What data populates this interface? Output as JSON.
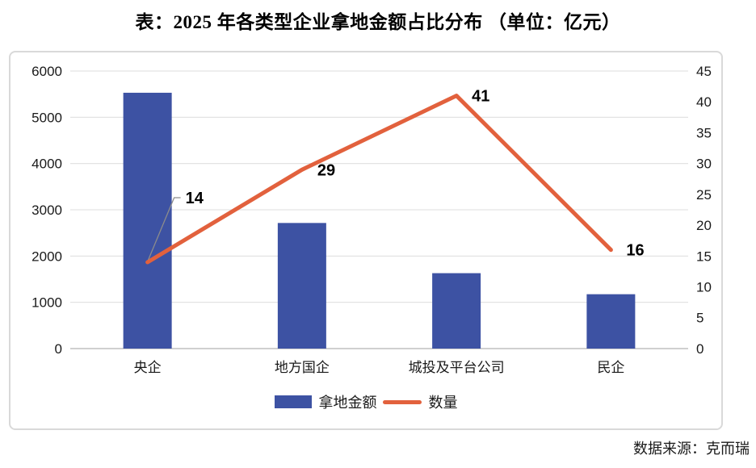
{
  "page": {
    "title": "表：2025 年各类型企业拿地金额占比分布 （单位：亿元）",
    "source": "数据来源：克而瑞"
  },
  "legend": {
    "bar_label": "拿地金额",
    "line_label": "数量"
  },
  "colors": {
    "bar": "#3d52a3",
    "line": "#e2613d",
    "grid": "#e3e3e3",
    "axis_line": "#c0c0c0",
    "box_border": "#d9d9d9",
    "tick_text": "#1a1a1a",
    "data_label_text": "#000000",
    "callout": "#8c8c8c"
  },
  "chart_data": {
    "type": "combo",
    "title": "表：2025 年各类型企业拿地金额占比分布 （单位：亿元）",
    "categories": [
      "央企",
      "地方国企",
      "城投及平台公司",
      "民企"
    ],
    "series": [
      {
        "name": "拿地金额",
        "type": "bar",
        "axis": "left",
        "values": [
          5530,
          2715,
          1630,
          1175
        ]
      },
      {
        "name": "数量",
        "type": "line",
        "axis": "right",
        "values": [
          14,
          29,
          41,
          16
        ],
        "point_labels": [
          "14",
          "29",
          "41",
          "16"
        ]
      }
    ],
    "left_axis": {
      "min": 0,
      "max": 6000,
      "step": 1000,
      "ticks": [
        "6000",
        "5000",
        "4000",
        "3000",
        "2000",
        "1000",
        "0"
      ]
    },
    "right_axis": {
      "min": 0,
      "max": 45,
      "step": 5,
      "ticks": [
        "45",
        "40",
        "35",
        "30",
        "25",
        "20",
        "15",
        "10",
        "5",
        "0"
      ]
    },
    "grid": true,
    "legend_position": "bottom",
    "unit": "亿元"
  }
}
